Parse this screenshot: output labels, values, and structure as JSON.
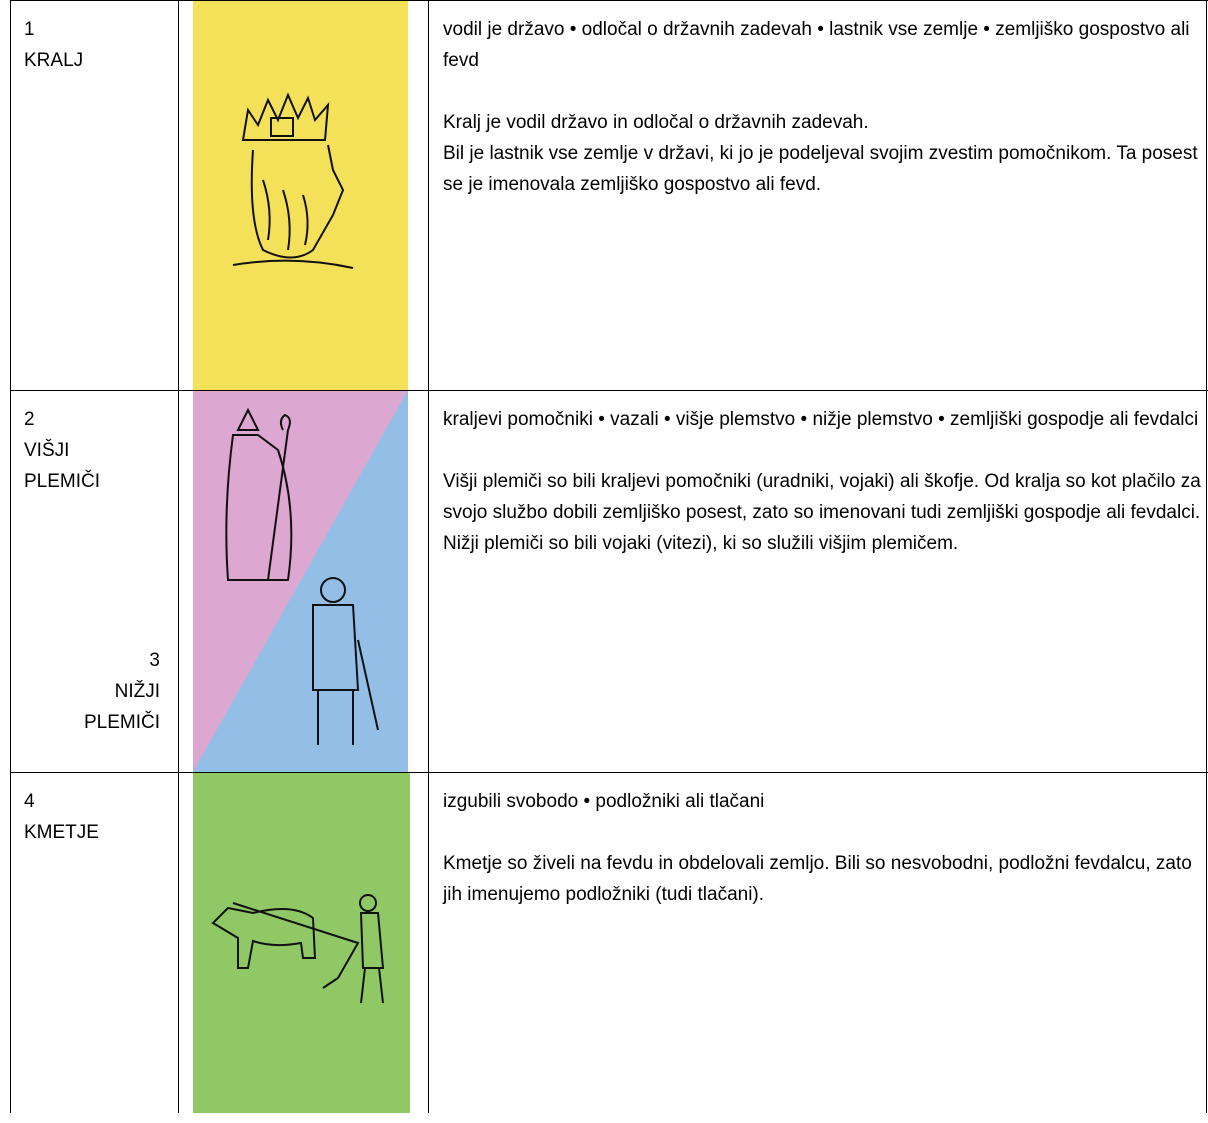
{
  "rows": [
    {
      "number": "1",
      "label": "KRALJ",
      "keywords": "vodil je državo • odločal o državnih zadevah • lastnik vse zemlje • zemljiško gospostvo ali fevd",
      "description": [
        "Kralj je vodil državo in odločal o državnih zadevah.",
        "Bil je lastnik vse zemlje v državi, ki jo je podeljeval svojim zvestim pomočnikom. Ta posest se je imenovala zemljiško gospostvo ali fevd."
      ]
    },
    {
      "number": "2",
      "label": "VIŠJI PLEMIČI",
      "sub_number": "3",
      "sub_label": "NIŽJI PLEMIČI",
      "keywords": "kraljevi pomočniki • vazali • višje plemstvo • nižje plemstvo • zemljiški gospodje ali fevdalci",
      "description": [
        "Višji plemiči so bili kraljevi pomočniki (uradniki, vojaki) ali škofje. Od kralja so kot plačilo za svojo službo dobili zemljiško posest, zato so imenovani tudi zemljiški gospodje ali fevdalci. Nižji plemiči so bili vojaki (vitezi), ki so služili višjim plemičem."
      ]
    },
    {
      "number": "4",
      "label": "KMETJE",
      "keywords": "izgubili svobodo • podložniki ali tlačani",
      "description": [
        "Kmetje so živeli na fevdu in obdelovali zemljo. Bili so nesvobodni, podložni fevdalcu, zato jih imenujemo podložniki (tudi tlačani)."
      ]
    }
  ]
}
